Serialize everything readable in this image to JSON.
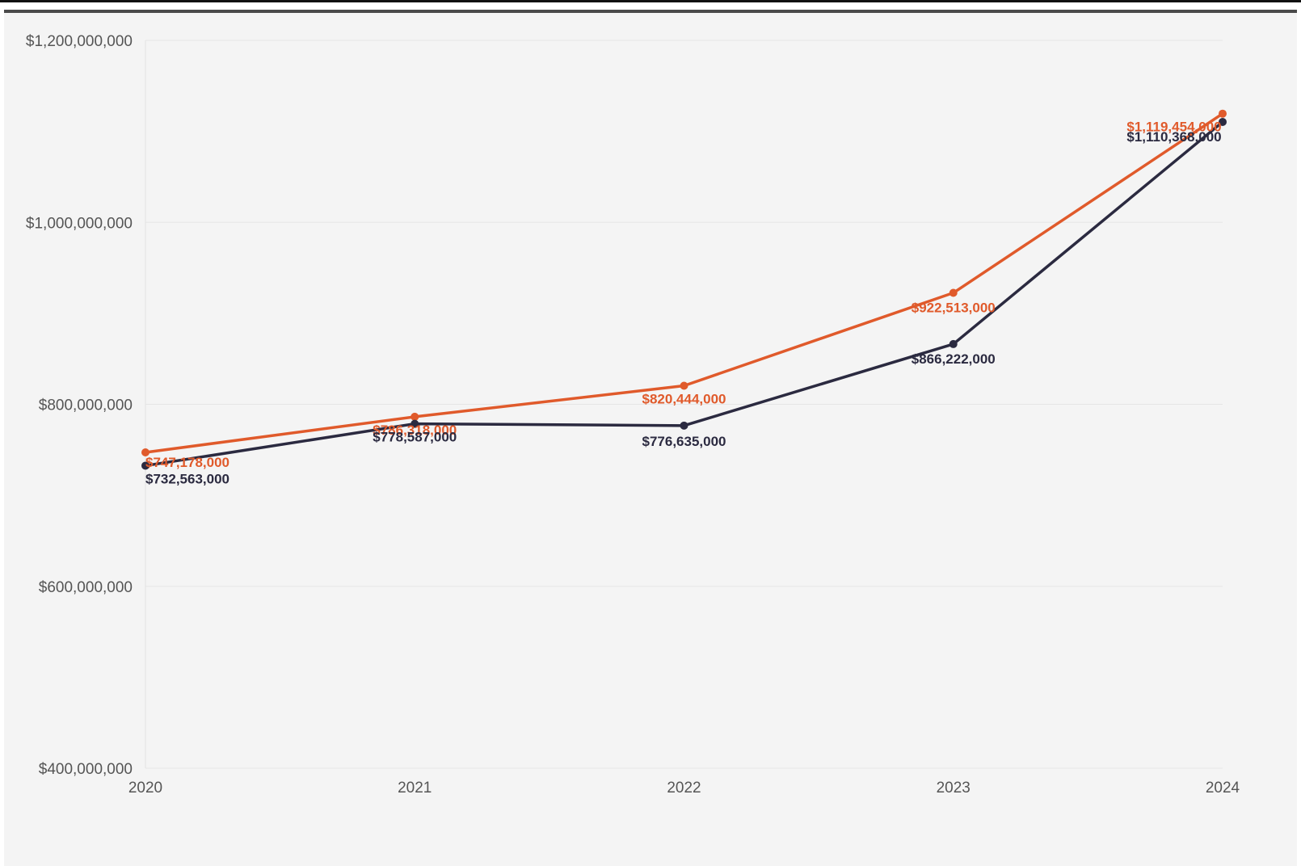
{
  "chart_data": {
    "type": "line",
    "title": "",
    "xlabel": "",
    "ylabel": "",
    "x": [
      "2020",
      "2021",
      "2022",
      "2023",
      "2024"
    ],
    "ylim": [
      400000000,
      1200000000
    ],
    "yticks": [
      400000000,
      600000000,
      800000000,
      1000000000,
      1200000000
    ],
    "ytick_labels": [
      "$400,000,000",
      "$600,000,000",
      "$800,000,000",
      "$1,000,000,000",
      "$1,200,000,000"
    ],
    "grid": true,
    "legend": "none",
    "series": [
      {
        "color": "#e05a2b",
        "values": [
          747178000,
          786318000,
          820444000,
          922513000,
          1119454000
        ],
        "labels": [
          "$747,178,000",
          "$786,318,000",
          "$820,444,000",
          "$922,513,000",
          "$1,119,454,000"
        ]
      },
      {
        "color": "#2b2a40",
        "values": [
          732563000,
          778587000,
          776635000,
          866222000,
          1110368000
        ],
        "labels": [
          "$732,563,000",
          "$778,587,000",
          "$776,635,000",
          "$866,222,000",
          "$1,110,368,000"
        ]
      }
    ]
  }
}
